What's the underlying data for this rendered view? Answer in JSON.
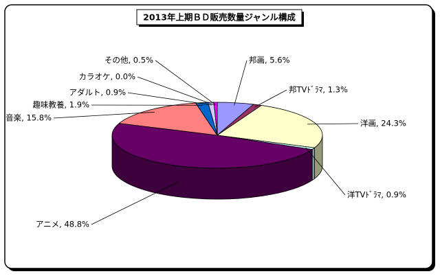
{
  "chart_data": {
    "type": "pie3d",
    "title": "2013年上期ＢＤ販売数量ジャンル構成",
    "values": [
      5.6,
      1.3,
      24.3,
      0.9,
      48.8,
      15.8,
      1.9,
      0.9,
      0.0,
      0.5
    ],
    "value_labels": [
      "邦画, 5.6%",
      "邦TVﾄﾞﾗﾏ, 1.3%",
      "洋画, 24.3%",
      "洋TVﾄﾞﾗﾏ, 0.9%",
      "アニメ, 48.8%",
      "音楽, 15.8%",
      "趣味教養, 1.9%",
      "アダルト, 0.9%",
      "カラオケ, 0.0%",
      "その他, 0.5%"
    ],
    "colors": [
      "#9999ff",
      "#993366",
      "#ffffcc",
      "#ccffff",
      "#660066",
      "#ff8080",
      "#0066cc",
      "#ccccff",
      "#000080",
      "#ff00ff"
    ]
  }
}
